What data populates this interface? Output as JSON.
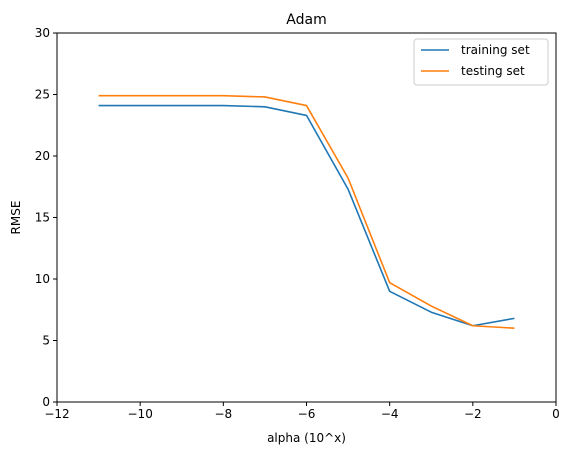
{
  "chart_data": {
    "type": "line",
    "title": "Adam",
    "xlabel": "alpha (10^x)",
    "ylabel": "RMSE",
    "xlim": [
      -12,
      0
    ],
    "ylim": [
      0,
      30
    ],
    "xticks": [
      -12,
      -10,
      -8,
      -6,
      -4,
      -2,
      0
    ],
    "xtick_labels": [
      "−12",
      "−10",
      "−8",
      "−6",
      "−4",
      "−2",
      "0"
    ],
    "yticks": [
      0,
      5,
      10,
      15,
      20,
      25,
      30
    ],
    "ytick_labels": [
      "0",
      "5",
      "10",
      "15",
      "20",
      "25",
      "30"
    ],
    "grid": false,
    "legend_position": "upper right",
    "series": [
      {
        "name": "training set",
        "color": "#1f77b4",
        "x": [
          -11,
          -10,
          -9,
          -8,
          -7,
          -6,
          -5,
          -4,
          -3,
          -2,
          -1
        ],
        "y": [
          24.1,
          24.1,
          24.1,
          24.1,
          24.0,
          23.3,
          17.3,
          9.0,
          7.3,
          6.2,
          6.8
        ]
      },
      {
        "name": "testing set",
        "color": "#ff7f0e",
        "x": [
          -11,
          -10,
          -9,
          -8,
          -7,
          -6,
          -5,
          -4,
          -3,
          -2,
          -1
        ],
        "y": [
          24.9,
          24.9,
          24.9,
          24.9,
          24.8,
          24.1,
          18.2,
          9.7,
          7.8,
          6.2,
          6.0
        ]
      }
    ]
  }
}
